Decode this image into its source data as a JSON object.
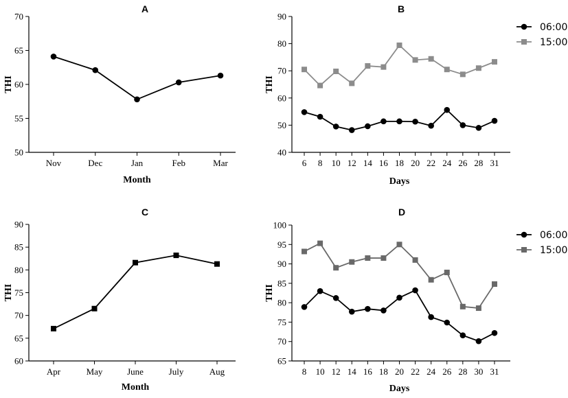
{
  "chart_data": [
    {
      "type": "line",
      "panel": "A",
      "categories": [
        "Nov",
        "Dec",
        "Jan",
        "Feb",
        "Mar"
      ],
      "series": [
        {
          "values": [
            64.1,
            62.1,
            57.8,
            60.3,
            61.3
          ],
          "color": "#000000",
          "marker": "circle"
        }
      ],
      "xlabel": "Month",
      "ylabel": "THI",
      "ylim": [
        50,
        70
      ],
      "yticks": [
        50,
        55,
        60,
        65,
        70
      ],
      "grid": false,
      "legend": null
    },
    {
      "type": "line",
      "panel": "B",
      "categories": [
        "6",
        "8",
        "10",
        "12",
        "14",
        "16",
        "18",
        "20",
        "22",
        "24",
        "26",
        "28",
        "31"
      ],
      "series": [
        {
          "name": "06:00",
          "values": [
            54.8,
            53.1,
            49.5,
            48.2,
            49.6,
            51.4,
            51.4,
            51.3,
            49.8,
            55.6,
            50.0,
            49.0,
            51.6
          ],
          "color": "#000000",
          "marker": "circle"
        },
        {
          "name": "15:00",
          "values": [
            70.5,
            64.6,
            69.8,
            65.4,
            71.8,
            71.4,
            79.4,
            74.0,
            74.4,
            70.5,
            68.7,
            71.0,
            73.3
          ],
          "color": "#8c8c8c",
          "marker": "square"
        }
      ],
      "xlabel": "Days",
      "ylabel": "THI",
      "ylim": [
        40,
        90
      ],
      "yticks": [
        40,
        50,
        60,
        70,
        80,
        90
      ],
      "grid": false,
      "legend": "right"
    },
    {
      "type": "line",
      "panel": "C",
      "categories": [
        "Apr",
        "May",
        "June",
        "July",
        "Aug"
      ],
      "series": [
        {
          "values": [
            67.1,
            71.5,
            81.6,
            83.2,
            81.3
          ],
          "color": "#000000",
          "marker": "square"
        }
      ],
      "xlabel": "Month",
      "ylabel": "THI",
      "ylim": [
        60,
        90
      ],
      "yticks": [
        60,
        65,
        70,
        75,
        80,
        85,
        90
      ],
      "grid": false,
      "legend": null
    },
    {
      "type": "line",
      "panel": "D",
      "categories": [
        "8",
        "10",
        "12",
        "14",
        "16",
        "18",
        "20",
        "22",
        "24",
        "26",
        "28",
        "30",
        "31"
      ],
      "series": [
        {
          "name": "06:00",
          "values": [
            78.9,
            83.0,
            81.2,
            77.7,
            78.4,
            78.0,
            81.3,
            83.2,
            76.3,
            74.9,
            71.6,
            70.1,
            72.2
          ],
          "color": "#000000",
          "marker": "circle"
        },
        {
          "name": "15:00",
          "values": [
            93.2,
            95.3,
            89.0,
            90.5,
            91.5,
            91.5,
            95.0,
            91.0,
            85.9,
            87.8,
            79.0,
            78.6,
            84.8
          ],
          "color": "#696969",
          "marker": "square"
        }
      ],
      "xlabel": "Days",
      "ylabel": "THI",
      "ylim": [
        65,
        100
      ],
      "yticks": [
        65,
        70,
        75,
        80,
        85,
        90,
        95,
        100
      ],
      "grid": false,
      "legend": "right"
    }
  ]
}
